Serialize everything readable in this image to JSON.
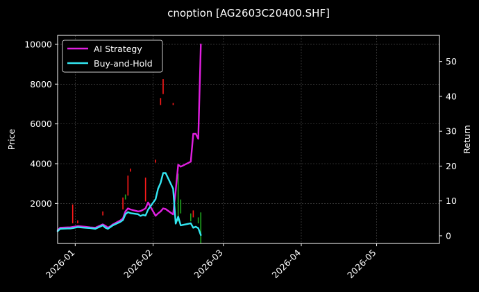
{
  "chart_data": {
    "type": "line",
    "title": "cnoption [AG2603C20400.SHF]",
    "xlabel": "",
    "ylabel": "Price",
    "y2label": "Return",
    "xlim": [
      "2025-12-25",
      "2026-05-26"
    ],
    "ylim": [
      -10,
      10450
    ],
    "y2lim": [
      -2.2,
      57.5
    ],
    "x_ticks": [
      "2026-01",
      "2026-02",
      "2026-03",
      "2026-04",
      "2026-05"
    ],
    "y_ticks": [
      2000,
      4000,
      6000,
      8000,
      10000
    ],
    "y2_ticks": [
      0,
      10,
      20,
      30,
      40,
      50
    ],
    "grid": true,
    "legend": "top-left",
    "colors": {
      "background": "#000000",
      "ai_strategy": "#e01fe0",
      "buy_hold": "#33e6f2",
      "candle_up": "#ff1a1a",
      "candle_down": "#1fa81f"
    },
    "series": [
      {
        "name": "AI Strategy",
        "axis": "price",
        "points": [
          [
            "2025-12-25",
            650
          ],
          [
            "2025-12-26",
            780
          ],
          [
            "2025-12-29",
            800
          ],
          [
            "2025-12-30",
            800
          ],
          [
            "2025-12-31",
            820
          ],
          [
            "2026-01-02",
            860
          ],
          [
            "2026-01-05",
            830
          ],
          [
            "2026-01-07",
            800
          ],
          [
            "2026-01-09",
            780
          ],
          [
            "2026-01-12",
            950
          ],
          [
            "2026-01-13",
            880
          ],
          [
            "2026-01-14",
            780
          ],
          [
            "2026-01-15",
            850
          ],
          [
            "2026-01-16",
            950
          ],
          [
            "2026-01-19",
            1150
          ],
          [
            "2026-01-20",
            1250
          ],
          [
            "2026-01-21",
            1600
          ],
          [
            "2026-01-22",
            1750
          ],
          [
            "2026-01-23",
            1700
          ],
          [
            "2026-01-26",
            1600
          ],
          [
            "2026-01-27",
            1620
          ],
          [
            "2026-01-28",
            1680
          ],
          [
            "2026-01-29",
            1750
          ],
          [
            "2026-01-30",
            2050
          ],
          [
            "2026-02-02",
            1380
          ],
          [
            "2026-02-03",
            1500
          ],
          [
            "2026-02-04",
            1600
          ],
          [
            "2026-02-05",
            1750
          ],
          [
            "2026-02-06",
            1720
          ],
          [
            "2026-02-09",
            1450
          ],
          [
            "2026-02-10",
            2650
          ],
          [
            "2026-02-11",
            3950
          ],
          [
            "2026-02-12",
            3850
          ],
          [
            "2026-02-16",
            4100
          ],
          [
            "2026-02-17",
            5500
          ],
          [
            "2026-02-18",
            5500
          ],
          [
            "2026-02-19",
            5250
          ],
          [
            "2026-02-20",
            10000
          ]
        ]
      },
      {
        "name": "Buy-and-Hold",
        "axis": "return",
        "points": [
          [
            "2025-12-25",
            1.3
          ],
          [
            "2025-12-26",
            2.0
          ],
          [
            "2025-12-29",
            2.1
          ],
          [
            "2025-12-30",
            2.1
          ],
          [
            "2025-12-31",
            2.2
          ],
          [
            "2026-01-02",
            2.5
          ],
          [
            "2026-01-05",
            2.3
          ],
          [
            "2026-01-07",
            2.2
          ],
          [
            "2026-01-09",
            2.0
          ],
          [
            "2026-01-12",
            3.0
          ],
          [
            "2026-01-13",
            2.3
          ],
          [
            "2026-01-14",
            2.0
          ],
          [
            "2026-01-15",
            2.5
          ],
          [
            "2026-01-16",
            3.0
          ],
          [
            "2026-01-19",
            4.0
          ],
          [
            "2026-01-20",
            4.5
          ],
          [
            "2026-01-21",
            6.2
          ],
          [
            "2026-01-22",
            6.8
          ],
          [
            "2026-01-23",
            6.5
          ],
          [
            "2026-01-26",
            6.2
          ],
          [
            "2026-01-27",
            5.7
          ],
          [
            "2026-01-28",
            6.0
          ],
          [
            "2026-01-29",
            5.8
          ],
          [
            "2026-01-30",
            7.5
          ],
          [
            "2026-02-02",
            10.5
          ],
          [
            "2026-02-03",
            13.5
          ],
          [
            "2026-02-04",
            15.2
          ],
          [
            "2026-02-05",
            18.0
          ],
          [
            "2026-02-06",
            18.0
          ],
          [
            "2026-02-09",
            13.5
          ],
          [
            "2026-02-10",
            3.5
          ],
          [
            "2026-02-11",
            5.5
          ],
          [
            "2026-02-12",
            3.0
          ],
          [
            "2026-02-16",
            3.6
          ],
          [
            "2026-02-17",
            2.3
          ],
          [
            "2026-02-18",
            2.6
          ],
          [
            "2026-02-19",
            2.2
          ],
          [
            "2026-02-20",
            0.2
          ]
        ]
      }
    ],
    "candles": [
      {
        "date": "2025-12-31",
        "low": 1000,
        "high": 1950,
        "dir": "up"
      },
      {
        "date": "2026-01-02",
        "low": 1000,
        "high": 1150,
        "dir": "up"
      },
      {
        "date": "2026-01-12",
        "low": 1400,
        "high": 1600,
        "dir": "up"
      },
      {
        "date": "2026-01-20",
        "low": 1700,
        "high": 2300,
        "dir": "up"
      },
      {
        "date": "2026-01-21",
        "low": 2200,
        "high": 2450,
        "dir": "down"
      },
      {
        "date": "2026-01-22",
        "low": 2400,
        "high": 3400,
        "dir": "up"
      },
      {
        "date": "2026-01-23",
        "low": 3600,
        "high": 3750,
        "dir": "up"
      },
      {
        "date": "2026-01-29",
        "low": 2100,
        "high": 3300,
        "dir": "up"
      },
      {
        "date": "2026-02-02",
        "low": 4050,
        "high": 4200,
        "dir": "up"
      },
      {
        "date": "2026-02-04",
        "low": 6950,
        "high": 7300,
        "dir": "up"
      },
      {
        "date": "2026-02-05",
        "low": 7500,
        "high": 8250,
        "dir": "up"
      },
      {
        "date": "2026-02-09",
        "low": 6950,
        "high": 7050,
        "dir": "up"
      },
      {
        "date": "2026-02-11",
        "low": 1100,
        "high": 3500,
        "dir": "down"
      },
      {
        "date": "2026-02-12",
        "low": 1500,
        "high": 2200,
        "dir": "down"
      },
      {
        "date": "2026-02-16",
        "low": 1100,
        "high": 1500,
        "dir": "down"
      },
      {
        "date": "2026-02-17",
        "low": 1300,
        "high": 1650,
        "dir": "up"
      },
      {
        "date": "2026-02-19",
        "low": 1000,
        "high": 1300,
        "dir": "down"
      },
      {
        "date": "2026-02-20",
        "low": 0,
        "high": 1550,
        "dir": "down"
      }
    ]
  }
}
